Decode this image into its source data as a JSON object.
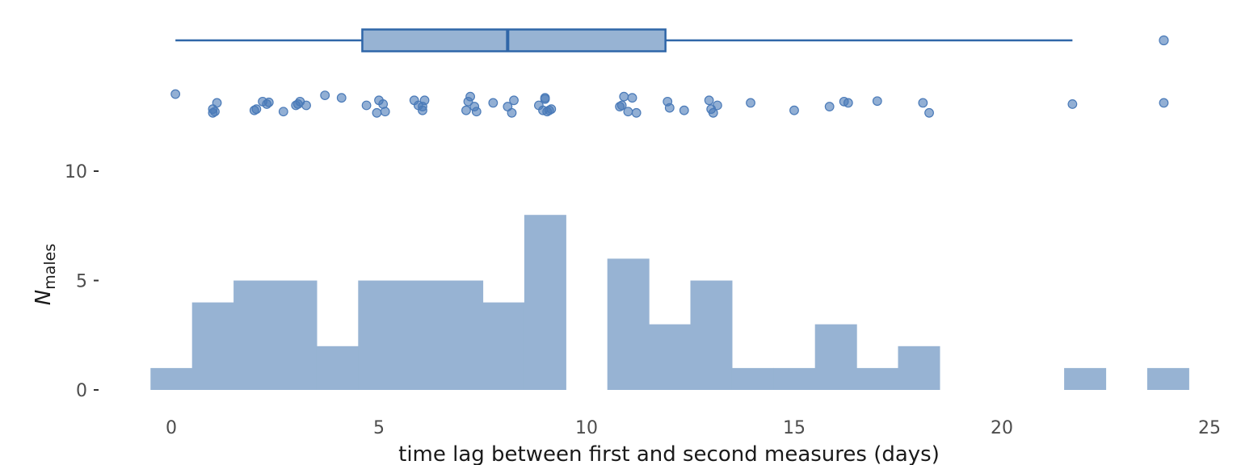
{
  "chart_data": {
    "type": "histogram",
    "xlabel": "time lag between first and second measures (days)",
    "ylabel": {
      "main": "N",
      "subscript": "males"
    },
    "xlim": [
      -0.9,
      25
    ],
    "ylim": [
      0,
      10
    ],
    "x_ticks": [
      "0",
      "5",
      "10",
      "15",
      "20",
      "25"
    ],
    "y_ticks": [
      "0",
      "5",
      "10"
    ],
    "bin_width": 1,
    "bins": [
      {
        "x": 0,
        "count": 1
      },
      {
        "x": 1,
        "count": 4
      },
      {
        "x": 2,
        "count": 5
      },
      {
        "x": 3,
        "count": 5
      },
      {
        "x": 4,
        "count": 2
      },
      {
        "x": 5,
        "count": 5
      },
      {
        "x": 6,
        "count": 5
      },
      {
        "x": 7,
        "count": 5
      },
      {
        "x": 8,
        "count": 4
      },
      {
        "x": 9,
        "count": 8
      },
      {
        "x": 10,
        "count": 0
      },
      {
        "x": 11,
        "count": 6
      },
      {
        "x": 12,
        "count": 3
      },
      {
        "x": 13,
        "count": 5
      },
      {
        "x": 14,
        "count": 1
      },
      {
        "x": 15,
        "count": 1
      },
      {
        "x": 16,
        "count": 3
      },
      {
        "x": 17,
        "count": 1
      },
      {
        "x": 18,
        "count": 2
      },
      {
        "x": 19,
        "count": 0
      },
      {
        "x": 20,
        "count": 0
      },
      {
        "x": 21,
        "count": 0
      },
      {
        "x": 22,
        "count": 1
      },
      {
        "x": 23,
        "count": 0
      },
      {
        "x": 24,
        "count": 1
      }
    ],
    "boxplot": {
      "whisker_low": 0.1,
      "q1": 4.6,
      "median": 8.1,
      "q3": 11.9,
      "whisker_high": 21.7,
      "outliers": [
        23.9
      ]
    },
    "jitter_points": [
      {
        "x": 0.1,
        "y": 0.95
      },
      {
        "x": 1.0,
        "y": 0.35
      },
      {
        "x": 1.0,
        "y": 0.2
      },
      {
        "x": 1.05,
        "y": 0.25
      },
      {
        "x": 1.1,
        "y": 0.6
      },
      {
        "x": 2.0,
        "y": 0.3
      },
      {
        "x": 2.05,
        "y": 0.35
      },
      {
        "x": 2.2,
        "y": 0.65
      },
      {
        "x": 2.3,
        "y": 0.55
      },
      {
        "x": 2.35,
        "y": 0.62
      },
      {
        "x": 2.7,
        "y": 0.25
      },
      {
        "x": 3.0,
        "y": 0.5
      },
      {
        "x": 3.05,
        "y": 0.55
      },
      {
        "x": 3.1,
        "y": 0.65
      },
      {
        "x": 3.25,
        "y": 0.5
      },
      {
        "x": 3.7,
        "y": 0.9
      },
      {
        "x": 4.1,
        "y": 0.8
      },
      {
        "x": 4.7,
        "y": 0.5
      },
      {
        "x": 4.95,
        "y": 0.2
      },
      {
        "x": 5.0,
        "y": 0.7
      },
      {
        "x": 5.1,
        "y": 0.55
      },
      {
        "x": 5.15,
        "y": 0.25
      },
      {
        "x": 5.85,
        "y": 0.7
      },
      {
        "x": 5.95,
        "y": 0.5
      },
      {
        "x": 6.05,
        "y": 0.3
      },
      {
        "x": 6.05,
        "y": 0.45
      },
      {
        "x": 6.1,
        "y": 0.7
      },
      {
        "x": 7.1,
        "y": 0.3
      },
      {
        "x": 7.15,
        "y": 0.65
      },
      {
        "x": 7.2,
        "y": 0.85
      },
      {
        "x": 7.3,
        "y": 0.45
      },
      {
        "x": 7.35,
        "y": 0.25
      },
      {
        "x": 7.75,
        "y": 0.6
      },
      {
        "x": 8.1,
        "y": 0.45
      },
      {
        "x": 8.2,
        "y": 0.2
      },
      {
        "x": 8.25,
        "y": 0.7
      },
      {
        "x": 8.85,
        "y": 0.5
      },
      {
        "x": 8.95,
        "y": 0.3
      },
      {
        "x": 9.0,
        "y": 0.75
      },
      {
        "x": 9.05,
        "y": 0.25
      },
      {
        "x": 9.1,
        "y": 0.3
      },
      {
        "x": 9.15,
        "y": 0.35
      },
      {
        "x": 9.0,
        "y": 0.8
      },
      {
        "x": 10.8,
        "y": 0.45
      },
      {
        "x": 10.85,
        "y": 0.5
      },
      {
        "x": 10.9,
        "y": 0.85
      },
      {
        "x": 11.0,
        "y": 0.25
      },
      {
        "x": 11.1,
        "y": 0.8
      },
      {
        "x": 11.2,
        "y": 0.2
      },
      {
        "x": 11.95,
        "y": 0.65
      },
      {
        "x": 12.0,
        "y": 0.4
      },
      {
        "x": 12.35,
        "y": 0.3
      },
      {
        "x": 12.95,
        "y": 0.7
      },
      {
        "x": 13.0,
        "y": 0.35
      },
      {
        "x": 13.05,
        "y": 0.2
      },
      {
        "x": 13.15,
        "y": 0.5
      },
      {
        "x": 13.95,
        "y": 0.6
      },
      {
        "x": 15.0,
        "y": 0.3
      },
      {
        "x": 15.85,
        "y": 0.45
      },
      {
        "x": 16.2,
        "y": 0.65
      },
      {
        "x": 16.3,
        "y": 0.6
      },
      {
        "x": 17.0,
        "y": 0.67
      },
      {
        "x": 18.1,
        "y": 0.6
      },
      {
        "x": 18.25,
        "y": 0.2
      },
      {
        "x": 21.7,
        "y": 0.55
      },
      {
        "x": 23.9,
        "y": 0.6
      }
    ],
    "colors": {
      "fill": "#97b3d3",
      "stroke": "#2f66a8",
      "point": "#4a7ab8",
      "text": "#4d4d4d"
    },
    "grid": false,
    "legend": "none"
  }
}
